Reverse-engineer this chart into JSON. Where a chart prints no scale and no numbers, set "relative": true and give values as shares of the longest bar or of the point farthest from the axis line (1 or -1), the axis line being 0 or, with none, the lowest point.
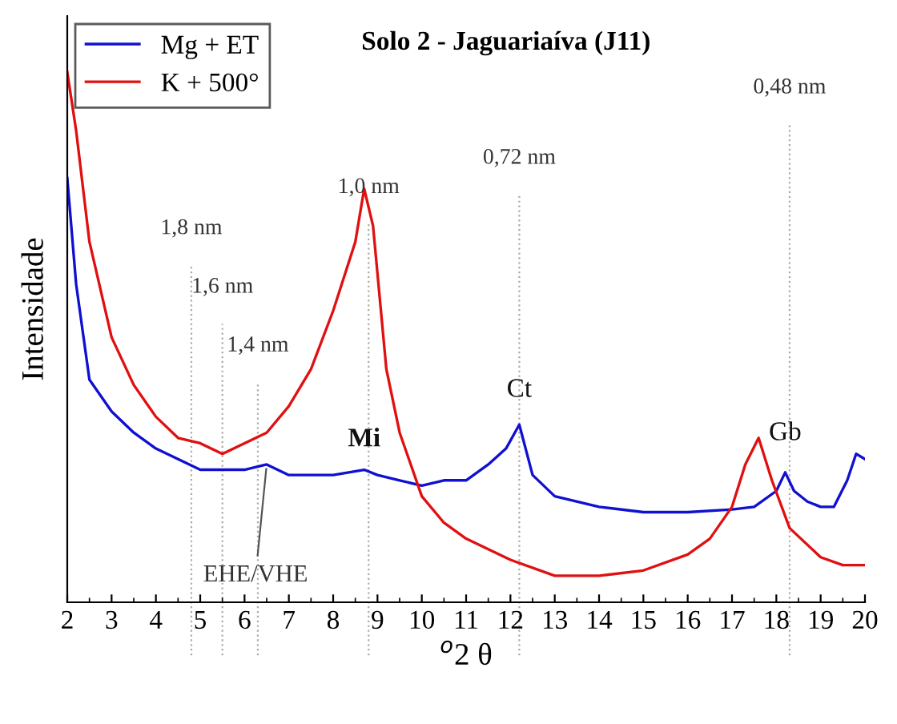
{
  "chart_data": {
    "type": "line",
    "title": "Solo 2 - Jaguariaíva (J11)",
    "xlabel": "$^{o}$2 θ",
    "ylabel": "Intensidade",
    "relative": true,
    "xlim": [
      2,
      20
    ],
    "xticks": [
      2,
      3,
      4,
      5,
      6,
      7,
      8,
      9,
      10,
      11,
      12,
      13,
      14,
      15,
      16,
      17,
      18,
      19,
      20
    ],
    "legend": "top left",
    "grid": false,
    "marker": "none",
    "line_style": "solid",
    "series": [
      {
        "name": "Mg + ET",
        "color": "#1010d0",
        "x": [
          2,
          2.2,
          2.5,
          3,
          3.5,
          4,
          4.5,
          5,
          5.5,
          6,
          6.5,
          7,
          7.5,
          8,
          8.7,
          9,
          9.5,
          10,
          10.5,
          11,
          11.5,
          11.9,
          12.2,
          12.5,
          13,
          14,
          15,
          16,
          17,
          17.5,
          18,
          18.2,
          18.4,
          18.7,
          19,
          19.3,
          19.6,
          19.8,
          20
        ],
        "values": [
          0.8,
          0.6,
          0.42,
          0.36,
          0.32,
          0.29,
          0.27,
          0.25,
          0.25,
          0.25,
          0.26,
          0.24,
          0.24,
          0.24,
          0.25,
          0.24,
          0.23,
          0.22,
          0.23,
          0.23,
          0.26,
          0.29,
          0.335,
          0.24,
          0.2,
          0.18,
          0.17,
          0.17,
          0.175,
          0.18,
          0.21,
          0.245,
          0.21,
          0.19,
          0.18,
          0.18,
          0.23,
          0.28,
          0.27
        ]
      },
      {
        "name": "K + 500°",
        "color": "#e01010",
        "x": [
          2,
          2.2,
          2.5,
          3,
          3.5,
          4,
          4.5,
          5,
          5.5,
          6,
          6.5,
          7,
          7.5,
          8,
          8.5,
          8.7,
          8.9,
          9.2,
          9.5,
          10,
          10.5,
          11,
          12,
          13,
          14,
          15,
          16,
          16.5,
          17,
          17.3,
          17.6,
          17.9,
          18.3,
          19,
          19.5,
          20
        ],
        "values": [
          1.0,
          0.89,
          0.68,
          0.5,
          0.41,
          0.35,
          0.31,
          0.3,
          0.28,
          0.3,
          0.32,
          0.37,
          0.44,
          0.55,
          0.68,
          0.78,
          0.71,
          0.44,
          0.32,
          0.2,
          0.15,
          0.12,
          0.08,
          0.05,
          0.05,
          0.06,
          0.09,
          0.12,
          0.18,
          0.26,
          0.31,
          0.23,
          0.14,
          0.085,
          0.07,
          0.07
        ]
      }
    ],
    "ref_lines": [
      {
        "axis": "x",
        "value": 4.8,
        "label": "1,8 nm",
        "color": "#aaaaaa",
        "line_style": "dotted"
      },
      {
        "axis": "x",
        "value": 5.5,
        "label": "1,6 nm",
        "color": "#aaaaaa",
        "line_style": "dotted"
      },
      {
        "axis": "x",
        "value": 6.3,
        "label": "1,4 nm",
        "color": "#aaaaaa",
        "line_style": "dotted"
      },
      {
        "axis": "x",
        "value": 8.8,
        "label": "1,0 nm",
        "color": "#aaaaaa",
        "line_style": "dotted"
      },
      {
        "axis": "x",
        "value": 12.2,
        "label": "0,72 nm",
        "color": "#aaaaaa",
        "line_style": "dotted"
      },
      {
        "axis": "x",
        "value": 18.3,
        "label": "0,48 nm",
        "color": "#aaaaaa",
        "line_style": "dotted"
      }
    ],
    "annotations": [
      {
        "text": "Mi",
        "x": 8.7,
        "y": 0.25
      },
      {
        "text": "Ct",
        "x": 12.2,
        "y": 0.335
      },
      {
        "text": "Gb",
        "x": 18.2,
        "y": 0.245
      },
      {
        "text": "EHE/VHE",
        "x": 6.5,
        "y": 0.26
      }
    ]
  }
}
